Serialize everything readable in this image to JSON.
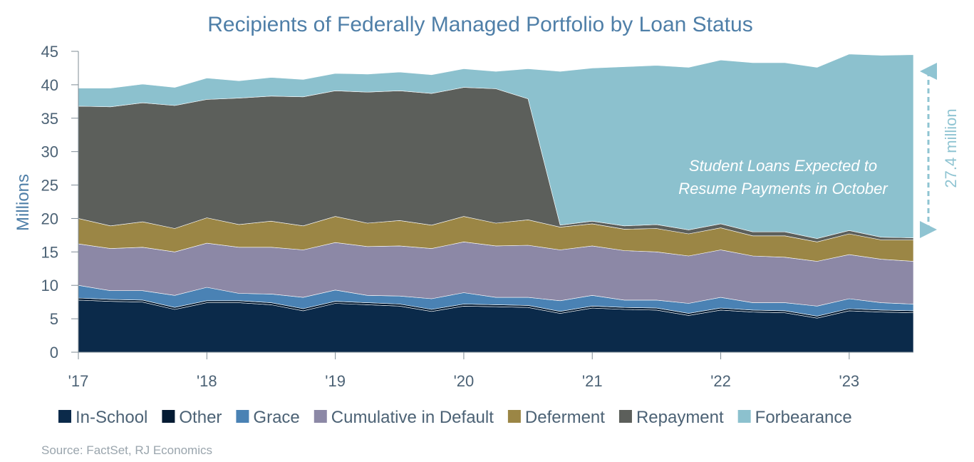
{
  "chart_data": {
    "type": "area",
    "stacked": true,
    "title": "Recipients of Federally Managed Portfolio by Loan Status",
    "ylabel": "Millions",
    "ylim": [
      0,
      45
    ],
    "yticks": [
      0,
      5,
      10,
      15,
      20,
      25,
      30,
      35,
      40,
      45
    ],
    "x_tick_labels": [
      "'17",
      "'18",
      "'19",
      "'20",
      "'21",
      "'22",
      "'23"
    ],
    "x_unit": "quarters starting Q1 2017",
    "x": [
      0,
      1,
      2,
      3,
      4,
      5,
      6,
      7,
      8,
      9,
      10,
      11,
      12,
      13,
      14,
      15,
      16,
      17,
      18,
      19,
      20,
      21,
      22,
      23,
      24,
      25,
      26
    ],
    "series": [
      {
        "name": "In-School",
        "color": "#0b2a4a",
        "values": [
          7.8,
          7.6,
          7.5,
          6.4,
          7.4,
          7.4,
          7.1,
          6.2,
          7.3,
          7.1,
          6.9,
          6.1,
          6.9,
          6.8,
          6.7,
          5.8,
          6.6,
          6.4,
          6.3,
          5.5,
          6.3,
          6.0,
          5.9,
          5.1,
          6.2,
          6.0,
          5.9
        ]
      },
      {
        "name": "Other",
        "color": "#041b33",
        "values": [
          0.3,
          0.3,
          0.3,
          0.3,
          0.3,
          0.3,
          0.3,
          0.3,
          0.3,
          0.3,
          0.3,
          0.3,
          0.3,
          0.3,
          0.3,
          0.3,
          0.3,
          0.3,
          0.3,
          0.3,
          0.3,
          0.3,
          0.3,
          0.3,
          0.3,
          0.3,
          0.3
        ]
      },
      {
        "name": "Grace",
        "color": "#4a82b4",
        "values": [
          1.9,
          1.3,
          1.4,
          1.8,
          2.0,
          1.1,
          1.3,
          1.7,
          1.7,
          1.1,
          1.2,
          1.6,
          1.7,
          1.1,
          1.2,
          1.6,
          1.6,
          1.1,
          1.2,
          1.5,
          1.6,
          1.1,
          1.2,
          1.5,
          1.5,
          1.1,
          1.0
        ]
      },
      {
        "name": "Cumulative in Default",
        "color": "#8c88a6",
        "values": [
          6.2,
          6.3,
          6.5,
          6.5,
          6.6,
          6.9,
          7.0,
          7.1,
          7.1,
          7.3,
          7.5,
          7.5,
          7.6,
          7.7,
          7.8,
          7.6,
          7.4,
          7.4,
          7.2,
          7.1,
          7.1,
          7.0,
          6.8,
          6.7,
          6.6,
          6.5,
          6.4
        ]
      },
      {
        "name": "Deferment",
        "color": "#9b8645",
        "values": [
          3.8,
          3.4,
          3.8,
          3.5,
          3.8,
          3.4,
          3.9,
          3.6,
          3.9,
          3.5,
          3.8,
          3.5,
          3.8,
          3.4,
          3.8,
          3.4,
          3.3,
          3.2,
          3.5,
          3.3,
          3.3,
          3.0,
          3.2,
          2.9,
          3.1,
          2.9,
          3.2
        ]
      },
      {
        "name": "Repayment",
        "color": "#5c5f5b",
        "values": [
          16.8,
          17.8,
          17.8,
          18.4,
          17.7,
          18.9,
          18.7,
          19.3,
          18.8,
          19.6,
          19.4,
          19.7,
          19.3,
          20.1,
          18.1,
          0.3,
          0.4,
          0.5,
          0.6,
          0.6,
          0.6,
          0.6,
          0.6,
          0.5,
          0.5,
          0.4,
          0.3
        ]
      },
      {
        "name": "Forbearance",
        "color": "#8cc1ce",
        "values": [
          2.7,
          2.8,
          2.8,
          2.7,
          3.2,
          2.6,
          2.8,
          2.6,
          2.6,
          2.7,
          2.8,
          2.8,
          2.8,
          2.6,
          4.5,
          23.0,
          22.9,
          23.8,
          23.8,
          24.3,
          24.5,
          25.3,
          25.3,
          25.6,
          26.4,
          27.2,
          27.4
        ]
      }
    ],
    "annotation": "Student Loans Expected to Resume Payments in October",
    "arrow_label": "27.4 million",
    "legend_position": "bottom",
    "grid": false
  },
  "source": "Source: FactSet, RJ Economics"
}
